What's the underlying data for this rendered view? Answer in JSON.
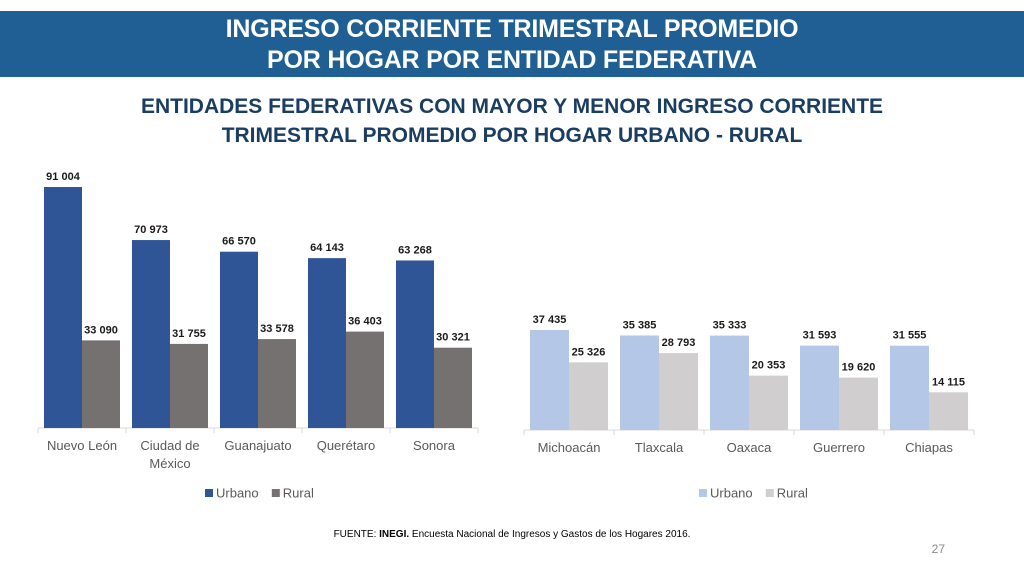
{
  "header": {
    "title_line1": "INGRESO CORRIENTE TRIMESTRAL PROMEDIO",
    "title_line2": "POR HOGAR POR ENTIDAD FEDERATIVA"
  },
  "subtitle": {
    "line1": "ENTIDADES FEDERATIVAS CON MAYOR Y MENOR INGRESO CORRIENTE",
    "line2": "TRIMESTRAL PROMEDIO POR HOGAR URBANO - RURAL"
  },
  "colors": {
    "banner": "#1f5f93",
    "high_urbano": "#2f5597",
    "high_rural": "#767171",
    "low_urbano": "#b4c7e7",
    "low_rural": "#d0cece"
  },
  "chart_data": [
    {
      "type": "bar",
      "title": "",
      "xlabel": "",
      "ylabel": "",
      "ylim": [
        0,
        100000
      ],
      "grid": false,
      "legend": "bottom",
      "categories": [
        [
          "Nuevo León"
        ],
        [
          "Ciudad de",
          "México"
        ],
        [
          "Guanajuato"
        ],
        [
          "Querétaro"
        ],
        [
          "Sonora"
        ]
      ],
      "series": [
        {
          "name": "Urbano",
          "values": [
            91004,
            70973,
            66570,
            64143,
            63268
          ],
          "labels": [
            "91 004",
            "70 973",
            "66 570",
            "64 143",
            "63 268"
          ]
        },
        {
          "name": "Rural",
          "values": [
            33090,
            31755,
            33578,
            36403,
            30321
          ],
          "labels": [
            "33 090",
            "31 755",
            "33 578",
            "36 403",
            "30 321"
          ]
        }
      ]
    },
    {
      "type": "bar",
      "title": "",
      "xlabel": "",
      "ylabel": "",
      "ylim": [
        0,
        40000
      ],
      "grid": false,
      "legend": "bottom",
      "categories": [
        [
          "Michoacán"
        ],
        [
          "Tlaxcala"
        ],
        [
          "Oaxaca"
        ],
        [
          "Guerrero"
        ],
        [
          "Chiapas"
        ]
      ],
      "series": [
        {
          "name": "Urbano",
          "values": [
            37435,
            35385,
            35333,
            31593,
            31555
          ],
          "labels": [
            "37 435",
            "35 385",
            "35 333",
            "31 593",
            "31 555"
          ]
        },
        {
          "name": "Rural",
          "values": [
            25326,
            28793,
            20353,
            19620,
            14115
          ],
          "labels": [
            "25 326",
            "28 793",
            "20 353",
            "19 620",
            "14 115"
          ]
        }
      ]
    }
  ],
  "footer": {
    "source_prefix": "FUENTE: ",
    "source_org": "INEGI.",
    "source_text": " Encuesta Nacional de Ingresos y Gastos de los Hogares 2016.",
    "page_number": "27"
  }
}
